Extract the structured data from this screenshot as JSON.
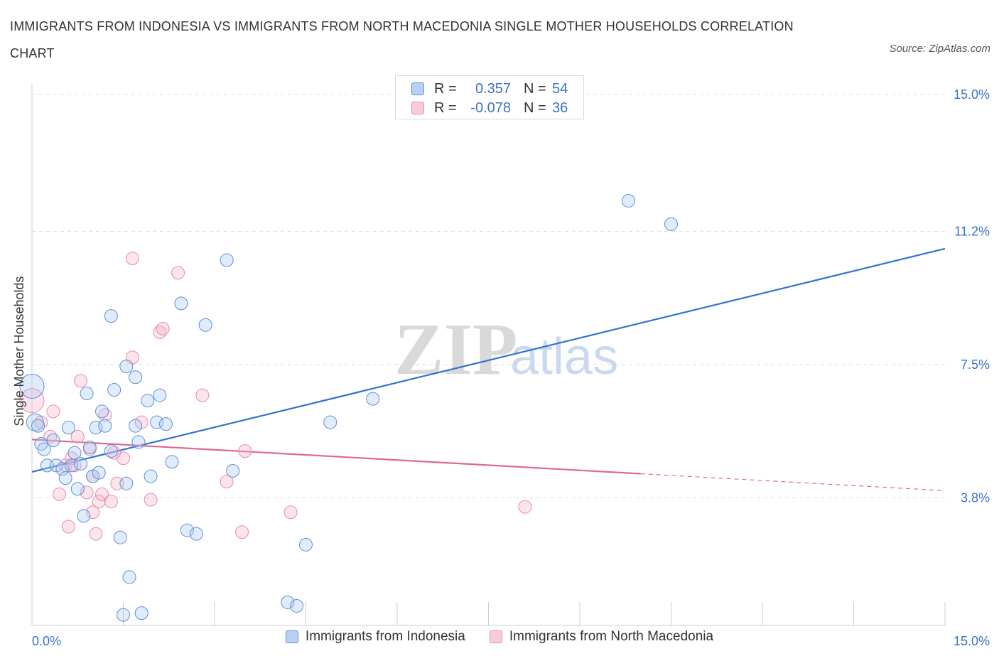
{
  "title": "IMMIGRANTS FROM INDONESIA VS IMMIGRANTS FROM NORTH MACEDONIA SINGLE MOTHER HOUSEHOLDS CORRELATION CHART",
  "source": "Source: ZipAtlas.com",
  "watermark": {
    "zip": "ZIP",
    "atlas": "atlas"
  },
  "colors": {
    "indonesia": "#5b8fd6",
    "macedonia": "#e88aa8",
    "indonesia_line": "#2f74d0",
    "macedonia_line": "#e06890",
    "tick_label": "#3a72c9"
  },
  "legend_box": {
    "rows": [
      {
        "r_label": "R =",
        "r_value": "0.357",
        "n_label": "N =",
        "n_value": "54"
      },
      {
        "r_label": "R =",
        "r_value": "-0.078",
        "n_label": "N =",
        "n_value": "36"
      }
    ]
  },
  "chart_data": {
    "type": "scatter",
    "title": "IMMIGRANTS FROM INDONESIA VS IMMIGRANTS FROM NORTH MACEDONIA SINGLE MOTHER HOUSEHOLDS CORRELATION CHART",
    "xlabel": "",
    "ylabel": "Single Mother Households",
    "xlim": [
      0,
      15
    ],
    "ylim": [
      0,
      15
    ],
    "x_tick_labels": [
      "0.0%",
      "15.0%"
    ],
    "y_ticks": [
      3.8,
      7.5,
      11.2,
      15.0
    ],
    "y_tick_labels": [
      "3.8%",
      "7.5%",
      "11.2%",
      "15.0%"
    ],
    "grid": true,
    "legend_position": "bottom-center",
    "series": [
      {
        "name": "Immigrants from Indonesia",
        "points": [
          [
            0.0,
            6.9
          ],
          [
            0.05,
            5.9
          ],
          [
            0.1,
            5.8
          ],
          [
            0.15,
            5.3
          ],
          [
            0.2,
            5.15
          ],
          [
            0.25,
            4.7
          ],
          [
            0.35,
            5.4
          ],
          [
            0.4,
            4.7
          ],
          [
            0.5,
            4.6
          ],
          [
            0.55,
            4.35
          ],
          [
            0.6,
            5.75
          ],
          [
            0.65,
            4.7
          ],
          [
            0.7,
            5.05
          ],
          [
            0.75,
            4.05
          ],
          [
            0.8,
            4.75
          ],
          [
            0.85,
            3.3
          ],
          [
            0.9,
            6.7
          ],
          [
            0.95,
            5.2
          ],
          [
            1.0,
            4.4
          ],
          [
            1.05,
            5.75
          ],
          [
            1.1,
            4.5
          ],
          [
            1.15,
            6.2
          ],
          [
            1.2,
            5.8
          ],
          [
            1.3,
            5.1
          ],
          [
            1.3,
            8.85
          ],
          [
            1.35,
            6.8
          ],
          [
            1.45,
            2.7
          ],
          [
            1.5,
            0.55
          ],
          [
            1.55,
            7.45
          ],
          [
            1.55,
            4.2
          ],
          [
            1.6,
            1.6
          ],
          [
            1.7,
            5.8
          ],
          [
            1.7,
            7.15
          ],
          [
            1.75,
            5.35
          ],
          [
            1.8,
            0.6
          ],
          [
            1.9,
            6.5
          ],
          [
            1.95,
            4.4
          ],
          [
            2.05,
            5.9
          ],
          [
            2.1,
            6.65
          ],
          [
            2.2,
            5.85
          ],
          [
            2.3,
            4.8
          ],
          [
            2.45,
            9.2
          ],
          [
            2.55,
            2.9
          ],
          [
            2.7,
            2.8
          ],
          [
            2.85,
            8.6
          ],
          [
            3.2,
            10.4
          ],
          [
            3.3,
            4.55
          ],
          [
            4.2,
            0.9
          ],
          [
            4.35,
            0.8
          ],
          [
            4.5,
            2.5
          ],
          [
            4.9,
            5.9
          ],
          [
            5.6,
            6.55
          ],
          [
            9.8,
            12.05
          ],
          [
            10.5,
            11.4
          ]
        ],
        "trend": {
          "x": [
            0,
            15
          ],
          "y": [
            4.52,
            10.72
          ]
        }
      },
      {
        "name": "Immigrants from North Macedonia",
        "points": [
          [
            0.0,
            6.5
          ],
          [
            0.15,
            5.9
          ],
          [
            0.3,
            5.5
          ],
          [
            0.35,
            6.2
          ],
          [
            0.45,
            3.9
          ],
          [
            0.55,
            4.7
          ],
          [
            0.6,
            3.0
          ],
          [
            0.65,
            4.9
          ],
          [
            0.7,
            4.7
          ],
          [
            0.75,
            5.5
          ],
          [
            0.8,
            7.05
          ],
          [
            0.9,
            3.95
          ],
          [
            0.95,
            5.15
          ],
          [
            1.0,
            3.4
          ],
          [
            1.05,
            2.8
          ],
          [
            1.1,
            3.7
          ],
          [
            1.15,
            3.9
          ],
          [
            1.2,
            6.1
          ],
          [
            1.3,
            3.7
          ],
          [
            1.35,
            5.05
          ],
          [
            1.4,
            4.2
          ],
          [
            1.5,
            4.9
          ],
          [
            1.65,
            10.45
          ],
          [
            1.65,
            7.7
          ],
          [
            1.8,
            5.9
          ],
          [
            1.95,
            3.75
          ],
          [
            2.1,
            8.4
          ],
          [
            2.15,
            8.5
          ],
          [
            2.4,
            10.05
          ],
          [
            2.8,
            6.65
          ],
          [
            3.2,
            4.25
          ],
          [
            3.45,
            2.85
          ],
          [
            3.5,
            5.1
          ],
          [
            4.25,
            3.4
          ],
          [
            8.1,
            3.55
          ],
          [
            1.0,
            4.4
          ]
        ],
        "trend": {
          "x": [
            0,
            10
          ],
          "y": [
            5.42,
            4.47
          ]
        },
        "trend_dashed_to": {
          "x": 15,
          "y": 4.0
        }
      }
    ]
  },
  "axis": {
    "ylabel": "Single Mother Households",
    "x_min_label": "0.0%",
    "x_max_label": "15.0%",
    "y_labels": [
      "3.8%",
      "7.5%",
      "11.2%",
      "15.0%"
    ]
  },
  "legend": {
    "indonesia": "Immigrants from Indonesia",
    "macedonia": "Immigrants from North Macedonia"
  }
}
